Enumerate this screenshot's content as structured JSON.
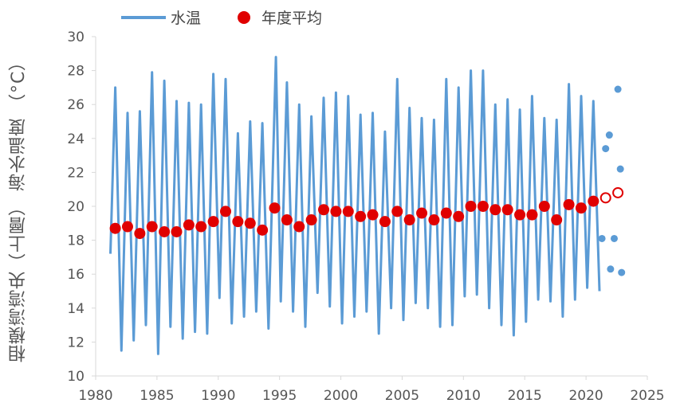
{
  "legend": {
    "water_temp_label": "水温",
    "annual_avg_label": "年度平均"
  },
  "colors": {
    "water_temp": "#5B9BD5",
    "annual_avg": "#E00000",
    "axis": "#D9D9D9",
    "text": "#555555"
  },
  "chart_data": {
    "type": "line",
    "ylabel": "相模湾湾央（上層） 海水温度 （°C）",
    "xlabel": "",
    "xlim": [
      1980,
      2025
    ],
    "ylim": [
      10,
      30
    ],
    "xticks": [
      1980,
      1985,
      1990,
      1995,
      2000,
      2005,
      2010,
      2015,
      2020,
      2025
    ],
    "yticks": [
      10,
      12,
      14,
      16,
      18,
      20,
      22,
      24,
      26,
      28,
      30
    ],
    "grid": false,
    "legend_position": "top",
    "series": [
      {
        "name": "水温",
        "kind": "line",
        "description": "monthly values, annual cycle",
        "annual_peaks": [
          [
            1981.6,
            27.0
          ],
          [
            1982.6,
            25.5
          ],
          [
            1983.6,
            25.6
          ],
          [
            1984.6,
            27.9
          ],
          [
            1985.6,
            27.4
          ],
          [
            1986.6,
            26.2
          ],
          [
            1987.6,
            26.1
          ],
          [
            1988.6,
            26.0
          ],
          [
            1989.6,
            27.8
          ],
          [
            1990.6,
            27.5
          ],
          [
            1991.6,
            24.3
          ],
          [
            1992.6,
            25.0
          ],
          [
            1993.6,
            24.9
          ],
          [
            1994.7,
            28.8
          ],
          [
            1995.6,
            27.3
          ],
          [
            1996.6,
            26.0
          ],
          [
            1997.6,
            25.3
          ],
          [
            1998.6,
            26.4
          ],
          [
            1999.6,
            26.7
          ],
          [
            2000.6,
            26.5
          ],
          [
            2001.6,
            25.4
          ],
          [
            2002.6,
            25.5
          ],
          [
            2003.6,
            24.4
          ],
          [
            2004.6,
            27.5
          ],
          [
            2005.6,
            25.8
          ],
          [
            2006.6,
            25.2
          ],
          [
            2007.6,
            25.1
          ],
          [
            2008.6,
            27.5
          ],
          [
            2009.6,
            27.0
          ],
          [
            2010.6,
            28.0
          ],
          [
            2011.6,
            28.0
          ],
          [
            2012.6,
            26.0
          ],
          [
            2013.6,
            26.3
          ],
          [
            2014.6,
            25.7
          ],
          [
            2015.6,
            26.5
          ],
          [
            2016.6,
            25.2
          ],
          [
            2017.6,
            25.1
          ],
          [
            2018.6,
            27.2
          ],
          [
            2019.6,
            26.5
          ],
          [
            2020.6,
            26.2
          ]
        ],
        "annual_troughs": [
          [
            1981.2,
            17.2
          ],
          [
            1982.1,
            11.5
          ],
          [
            1983.1,
            12.1
          ],
          [
            1984.1,
            13.0
          ],
          [
            1985.1,
            11.3
          ],
          [
            1986.1,
            12.9
          ],
          [
            1987.1,
            12.2
          ],
          [
            1988.1,
            12.6
          ],
          [
            1989.1,
            12.5
          ],
          [
            1990.1,
            14.6
          ],
          [
            1991.1,
            13.1
          ],
          [
            1992.1,
            13.5
          ],
          [
            1993.1,
            13.8
          ],
          [
            1994.1,
            12.8
          ],
          [
            1995.1,
            14.4
          ],
          [
            1996.1,
            13.8
          ],
          [
            1997.1,
            12.9
          ],
          [
            1998.1,
            14.9
          ],
          [
            1999.1,
            14.1
          ],
          [
            2000.1,
            13.1
          ],
          [
            2001.1,
            13.5
          ],
          [
            2002.1,
            13.8
          ],
          [
            2003.1,
            12.5
          ],
          [
            2004.1,
            14.0
          ],
          [
            2005.1,
            13.3
          ],
          [
            2006.1,
            14.3
          ],
          [
            2007.1,
            14.0
          ],
          [
            2008.1,
            12.9
          ],
          [
            2009.1,
            13.0
          ],
          [
            2010.1,
            14.7
          ],
          [
            2011.1,
            14.8
          ],
          [
            2012.1,
            14.0
          ],
          [
            2013.1,
            13.0
          ],
          [
            2014.1,
            12.4
          ],
          [
            2015.1,
            13.2
          ],
          [
            2016.1,
            14.5
          ],
          [
            2017.1,
            14.4
          ],
          [
            2018.1,
            13.5
          ],
          [
            2019.1,
            14.5
          ],
          [
            2020.1,
            15.2
          ],
          [
            2021.1,
            15.0
          ]
        ]
      },
      {
        "name": "年度平均",
        "kind": "marker",
        "x": [
          1981.6,
          1982.6,
          1983.6,
          1984.6,
          1985.6,
          1986.6,
          1987.6,
          1988.6,
          1989.6,
          1990.6,
          1991.6,
          1992.6,
          1993.6,
          1994.6,
          1995.6,
          1996.6,
          1997.6,
          1998.6,
          1999.6,
          2000.6,
          2001.6,
          2002.6,
          2003.6,
          2004.6,
          2005.6,
          2006.6,
          2007.6,
          2008.6,
          2009.6,
          2010.6,
          2011.6,
          2012.6,
          2013.6,
          2014.6,
          2015.6,
          2016.6,
          2017.6,
          2018.6,
          2019.6,
          2020.6
        ],
        "y": [
          18.7,
          18.8,
          18.4,
          18.8,
          18.5,
          18.5,
          18.9,
          18.8,
          19.1,
          19.7,
          19.1,
          19.0,
          18.6,
          19.9,
          19.2,
          18.8,
          19.2,
          19.8,
          19.7,
          19.7,
          19.4,
          19.5,
          19.1,
          19.7,
          19.2,
          19.6,
          19.2,
          19.6,
          19.4,
          20.0,
          20.0,
          19.8,
          19.8,
          19.5,
          19.5,
          20.0,
          19.2,
          20.1,
          19.9,
          20.3
        ]
      },
      {
        "kind": "open-marker",
        "x": [
          2021.6,
          2022.6
        ],
        "y": [
          20.5,
          20.8
        ]
      },
      {
        "kind": "small-marker",
        "x": [
          2021.3,
          2021.6,
          2021.9,
          2022.0,
          2022.3,
          2022.6,
          2022.8,
          2022.9
        ],
        "y": [
          18.1,
          23.4,
          24.2,
          16.3,
          18.1,
          26.9,
          22.2,
          16.1
        ]
      }
    ]
  }
}
